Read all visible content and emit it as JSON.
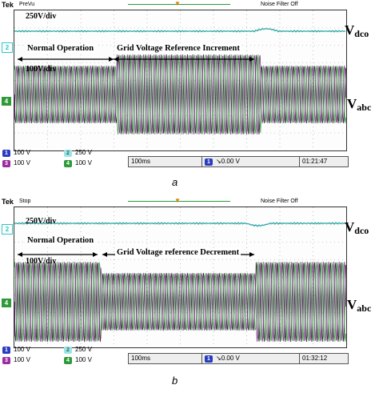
{
  "panels": [
    {
      "id": "a",
      "header": {
        "brand": "Tek",
        "state": "PreVu",
        "noise_filter": "Noise Filter Off"
      },
      "annotations": {
        "dc_scale": "250V/div",
        "ac_scale": "100V/div",
        "phase1": "Normal Operation",
        "phase2": "Grid Voltage Reference Increment"
      },
      "labels": {
        "vdco_main": "V",
        "vdco_sub": "dco",
        "vabc_main": "V",
        "vabc_sub": "abc"
      },
      "markers": {
        "ch2": "2",
        "ch4": "4"
      },
      "footer": {
        "ch1": {
          "num": "1",
          "value": "100 V"
        },
        "ch2": {
          "num": "2",
          "value": "250 V"
        },
        "ch3": {
          "num": "3",
          "value": "100 V"
        },
        "ch4": {
          "num": "4",
          "value": "100 V"
        },
        "timebase": "100ms",
        "trigger_ch": "1",
        "trigger_level": "0.00 V",
        "time": "01:21:47"
      },
      "caption": "a"
    },
    {
      "id": "b",
      "header": {
        "brand": "Tek",
        "state": "Stop",
        "noise_filter": "Noise Filter Off"
      },
      "annotations": {
        "dc_scale": "250V/div",
        "ac_scale": "100V/div",
        "phase1": "Normal Operation",
        "phase2": "Grid Voltage reference Decrement"
      },
      "labels": {
        "vdco_main": "V",
        "vdco_sub": "dco",
        "vabc_main": "V",
        "vabc_sub": "abc"
      },
      "markers": {
        "ch2": "2",
        "ch4": "4"
      },
      "footer": {
        "ch1": {
          "num": "1",
          "value": "100 V"
        },
        "ch2": {
          "num": "2",
          "value": "250 V"
        },
        "ch3": {
          "num": "3",
          "value": "100 V"
        },
        "ch4": {
          "num": "4",
          "value": "100 V"
        },
        "timebase": "100ms",
        "trigger_ch": "1",
        "trigger_level": "0.00 V",
        "time": "01:32:12"
      },
      "caption": "b"
    }
  ],
  "colors": {
    "grid": "#9a9a9a",
    "dc_trace": "#2aa6a6",
    "phase_a": "#1b1b1b",
    "phase_b": "#7a2f86",
    "phase_c": "#3f9a49",
    "ch4_marker": "#2e9a3a",
    "ch2_marker": "#2cc7c7"
  }
}
